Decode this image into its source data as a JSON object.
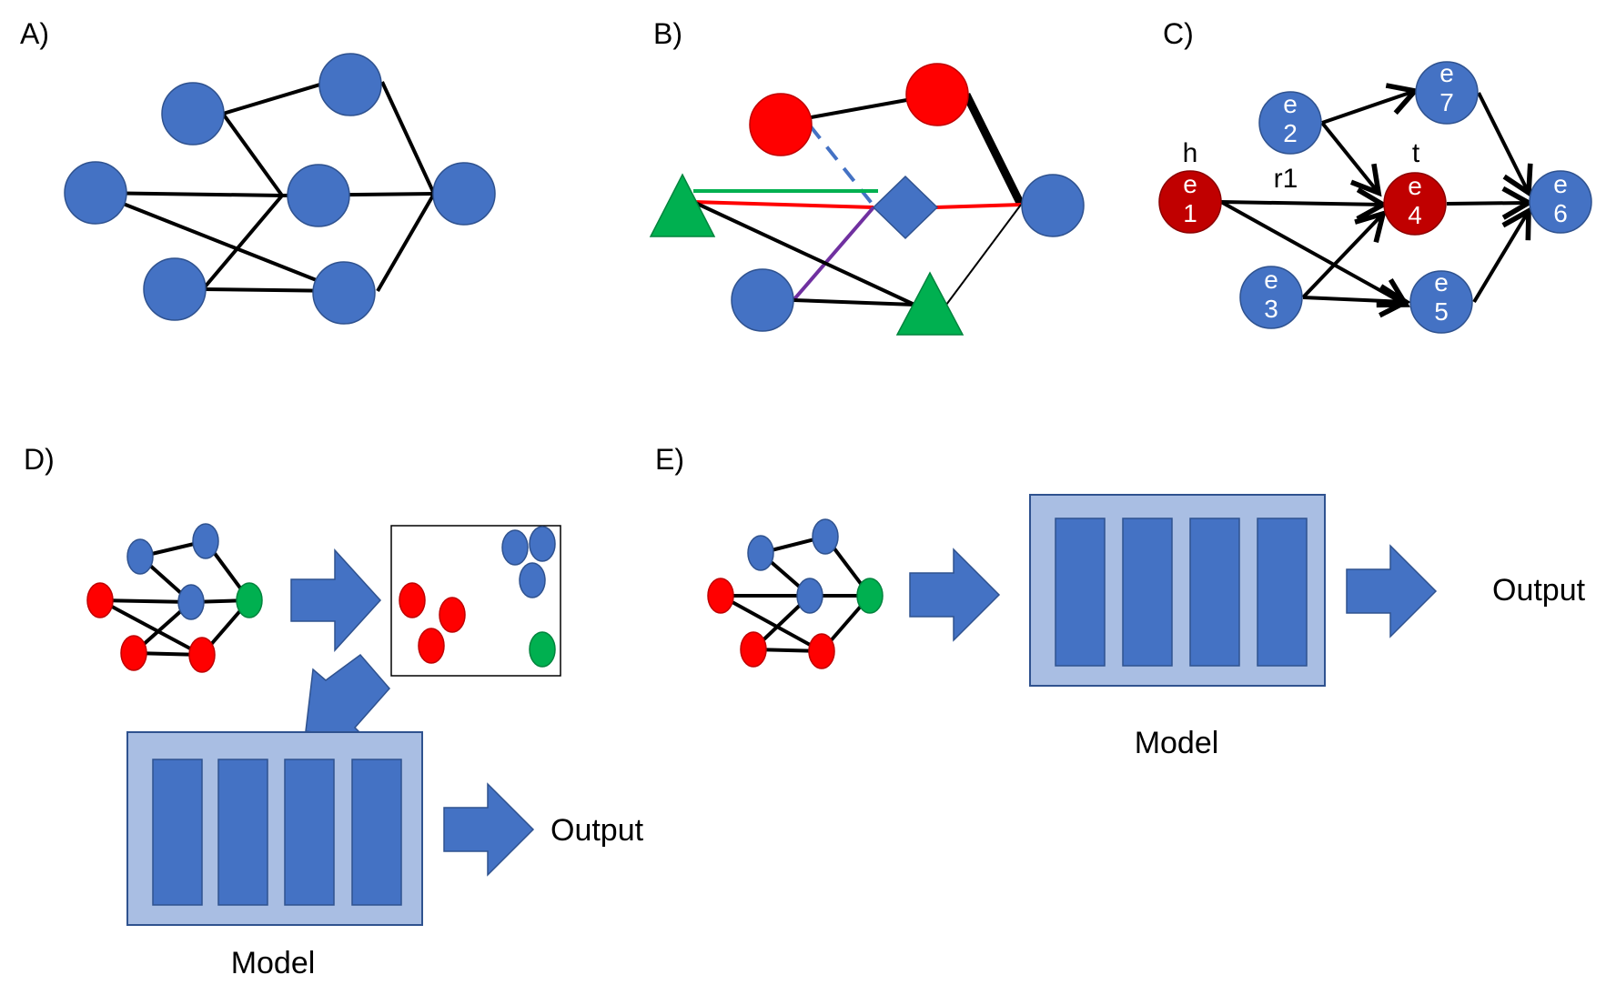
{
  "colors": {
    "blue": "#4472C4",
    "blue_stroke": "#2F528F",
    "red": "#FF0000",
    "dark_red": "#C00000",
    "green": "#00B050",
    "light_blue": "#A9BEE3",
    "purple": "#7030A0",
    "black": "#000000"
  },
  "panels": {
    "a": {
      "label": "A)"
    },
    "b": {
      "label": "B)"
    },
    "c": {
      "label": "C)",
      "head_label": "h",
      "tail_label": "t",
      "relation_label": "r1",
      "nodes": [
        "e\n1",
        "e\n2",
        "e\n3",
        "e\n4",
        "e\n5",
        "e\n6",
        "e\n7"
      ]
    },
    "d": {
      "label": "D)",
      "output_label": "Output",
      "model_label": "Model"
    },
    "e": {
      "label": "E)",
      "output_label": "Output",
      "model_label": "Model"
    }
  }
}
